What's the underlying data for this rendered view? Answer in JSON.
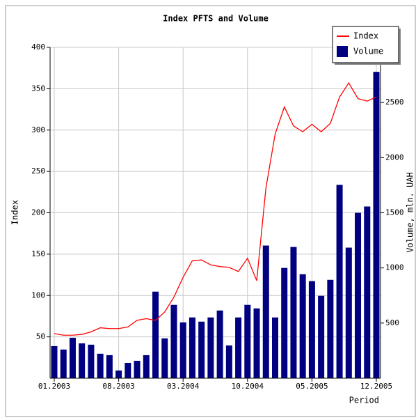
{
  "chart_data": {
    "type": "bar",
    "title": "Index PFTS and Volume",
    "x_label": "Period",
    "y_label": "Index",
    "y2_label": "Volume, mln. UAH",
    "categories": [
      "01.2003",
      null,
      null,
      null,
      null,
      null,
      null,
      "08.2003",
      null,
      null,
      null,
      null,
      null,
      null,
      "03.2004",
      null,
      null,
      null,
      null,
      null,
      null,
      "10.2004",
      null,
      null,
      null,
      null,
      null,
      null,
      "05.2005",
      null,
      null,
      null,
      null,
      null,
      null,
      "12.2005"
    ],
    "series": [
      {
        "name": "Index",
        "type": "line",
        "color": "#ff0000",
        "axis": "y",
        "values": [
          54,
          52,
          52,
          53,
          56,
          61,
          60,
          60,
          62,
          70,
          72,
          70,
          80,
          98,
          122,
          142,
          143,
          137,
          135,
          134,
          129,
          145,
          118,
          230,
          295,
          328,
          305,
          298,
          307,
          298,
          308,
          340,
          357,
          338,
          335,
          340
        ]
      },
      {
        "name": "Volume",
        "type": "bar",
        "color": "#000080",
        "axis": "y2",
        "values": [
          291,
          260,
          367,
          316,
          304,
          222,
          209,
          70,
          139,
          158,
          209,
          785,
          361,
          665,
          506,
          551,
          513,
          551,
          614,
          297,
          551,
          665,
          633,
          1203,
          551,
          1000,
          1190,
          943,
          880,
          747,
          892,
          1753,
          1184,
          1500,
          1557,
          2778
        ]
      }
    ],
    "ylim": [
      0,
      400
    ],
    "yticks": [
      50,
      100,
      150,
      200,
      250,
      300,
      350,
      400
    ],
    "y2lim": [
      0,
      3000
    ],
    "y2ticks": [
      500,
      1000,
      1500,
      2000,
      2500
    ],
    "grid": true,
    "legend": "top-right"
  }
}
